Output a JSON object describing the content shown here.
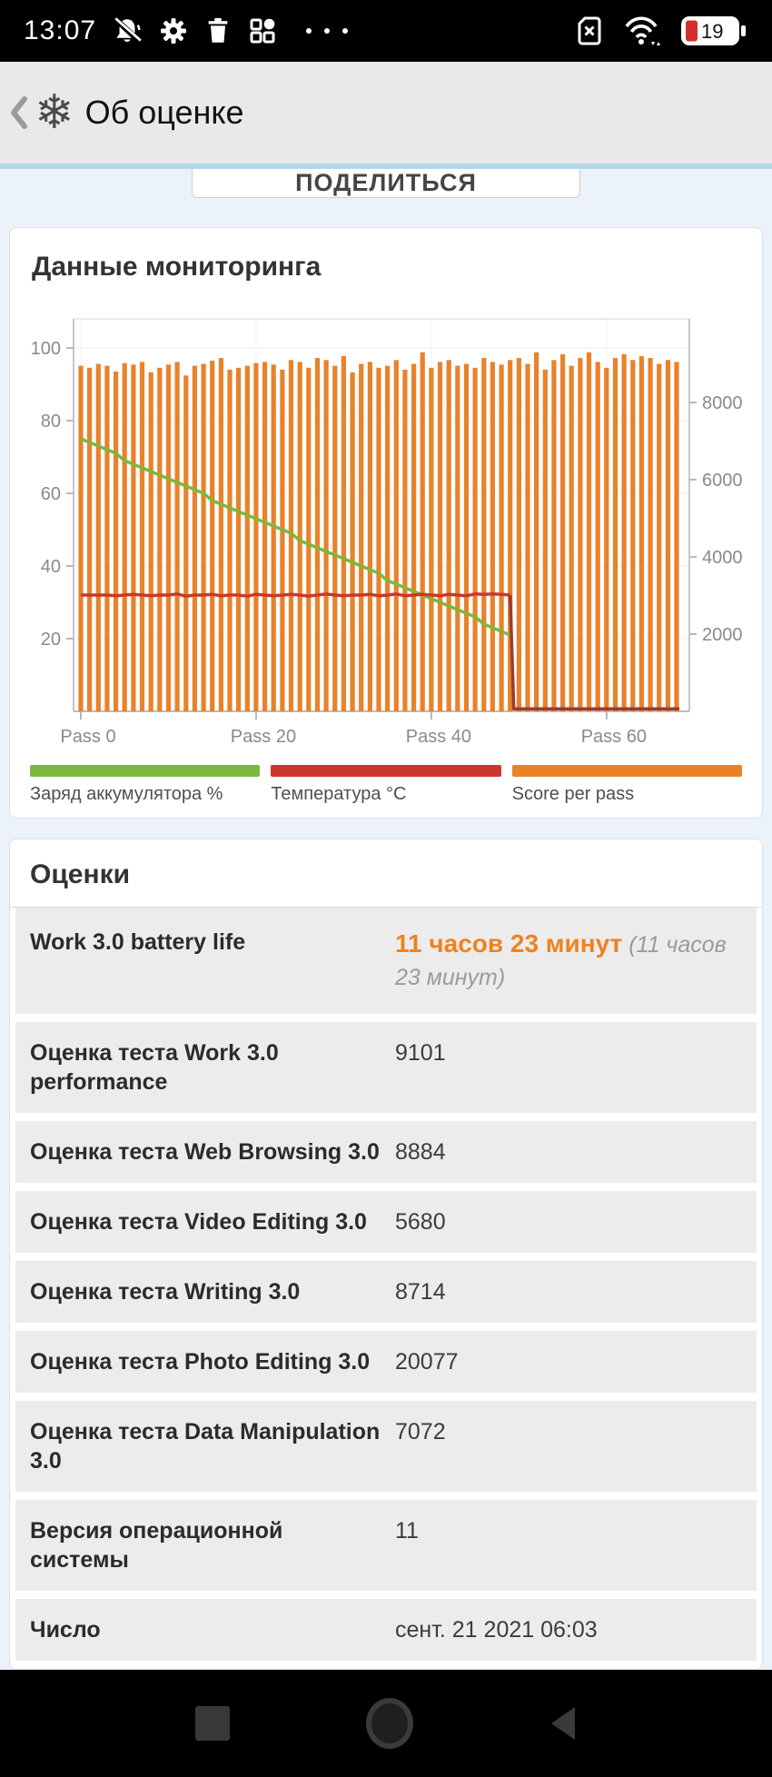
{
  "status_bar": {
    "time": "13:07",
    "left_icons": [
      "bell-muted-icon",
      "gear-icon",
      "trash-icon",
      "dashboard-icon",
      "more-dots-icon"
    ],
    "right_icons": [
      "sim-missing-icon",
      "wifi-icon",
      "battery-icon"
    ],
    "battery_percent": "19",
    "battery_fill_color": "#d32f2f"
  },
  "header": {
    "title": "Об оценке",
    "icons": [
      "back-chevron-icon",
      "snowflake-icon"
    ],
    "snowflake_glyph": "❄"
  },
  "share": {
    "label": "ПОДЕЛИТЬСЯ"
  },
  "monitoring": {
    "title": "Данные мониторинга"
  },
  "chart_data": {
    "type": "bar",
    "title": "",
    "xlabel": "",
    "x_tick_labels": [
      "Pass 0",
      "Pass 20",
      "Pass 40",
      "Pass 60"
    ],
    "x_tick_passes": [
      0,
      20,
      40,
      60
    ],
    "passes": 69,
    "left_axis": {
      "ticks": [
        20,
        40,
        60,
        80,
        100
      ],
      "range": [
        0,
        108
      ]
    },
    "right_axis": {
      "ticks": [
        2000,
        4000,
        6000,
        8000
      ],
      "range": [
        0,
        10800
      ]
    },
    "grid": true,
    "legend_position": "bottom",
    "series": [
      {
        "name": "Заряд аккумулятора %",
        "type": "line",
        "axis": "left",
        "color": "#7cb83e",
        "values": [
          75,
          74,
          73,
          72,
          71,
          69,
          68,
          67,
          66,
          65,
          64,
          63,
          62,
          61,
          60,
          58,
          57,
          56,
          55,
          54,
          53,
          52,
          51,
          50,
          49,
          47,
          46,
          45,
          44,
          43,
          42,
          41,
          40,
          39,
          38,
          36,
          35,
          34,
          33,
          32,
          31,
          30,
          29,
          28,
          27,
          26,
          24,
          23,
          22,
          21
        ]
      },
      {
        "name": "Температура °C",
        "type": "line",
        "axis": "left",
        "color": "#c9372f",
        "tail_color": "#9c3a31",
        "values": [
          32,
          32,
          32,
          32,
          31.8,
          32,
          32.2,
          32,
          31.8,
          32,
          32,
          32.3,
          31.7,
          32,
          32,
          32.2,
          31.8,
          32,
          32,
          31.7,
          32.2,
          32,
          31.8,
          32,
          32.2,
          32,
          31.7,
          32,
          32.3,
          32,
          31.8,
          32,
          32,
          32.2,
          31.8,
          32,
          32.3,
          31.8,
          32,
          32.2,
          32,
          31.8,
          32.2,
          32,
          31.8,
          32.3,
          32.2,
          32.3,
          32.2,
          32
        ],
        "after_drop_value": 0.7,
        "drop_at_pass": 49
      },
      {
        "name": "Score per pass",
        "type": "bar",
        "axis": "right",
        "color": "#e8822b",
        "values": [
          8950,
          8900,
          9000,
          8950,
          8800,
          9020,
          8980,
          9050,
          8780,
          8900,
          8980,
          9050,
          8700,
          8950,
          9000,
          9080,
          9150,
          8850,
          8900,
          8950,
          9020,
          9050,
          8980,
          8850,
          9100,
          9050,
          8900,
          9150,
          9100,
          8950,
          9200,
          8780,
          9000,
          9050,
          8900,
          8950,
          9100,
          8850,
          9000,
          9300,
          8900,
          9050,
          9100,
          8950,
          9000,
          8900,
          9150,
          9050,
          8980,
          9100,
          9150,
          9000,
          9300,
          8850,
          9100,
          9250,
          8950,
          9150,
          9300,
          9050,
          8900,
          9150,
          9250,
          9100,
          9200,
          9150,
          9000,
          9100,
          9050
        ]
      }
    ]
  },
  "scores": {
    "title": "Оценки",
    "battery_row": {
      "label": "Work 3.0 battery life",
      "value_main": "11 часов 23 минут",
      "value_note": " (11 часов 23 минут)"
    },
    "rows": [
      {
        "label": "Оценка теста Work 3.0 performance",
        "value": "9101"
      },
      {
        "label": "Оценка теста Web Browsing 3.0",
        "value": "8884"
      },
      {
        "label": "Оценка теста Video Editing 3.0",
        "value": "5680"
      },
      {
        "label": "Оценка теста Writing 3.0",
        "value": "8714"
      },
      {
        "label": "Оценка теста Photo Editing 3.0",
        "value": "20077"
      },
      {
        "label": "Оценка теста Data Manipulation 3.0",
        "value": "7072"
      },
      {
        "label": "Версия операционной системы",
        "value": "11"
      },
      {
        "label": "Число",
        "value": "сент. 21 2021 06:03"
      }
    ]
  },
  "nav_bar": {
    "icons": [
      "recents-square-icon",
      "home-circle-icon",
      "back-triangle-icon"
    ]
  }
}
